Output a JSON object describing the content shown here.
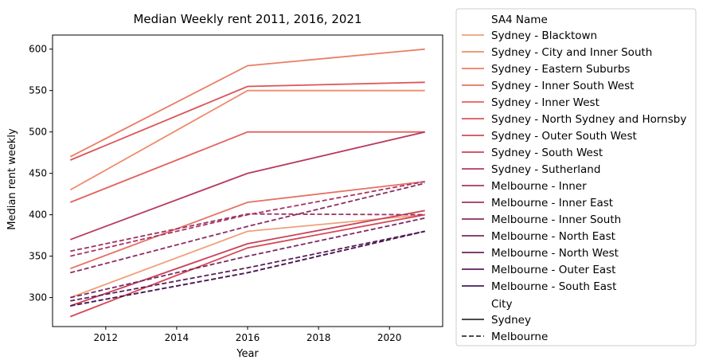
{
  "chart_data": {
    "type": "line",
    "title": "Median Weekly rent 2011, 2016, 2021",
    "xlabel": "Year",
    "ylabel": "Median rent weekly",
    "x": [
      2011,
      2016,
      2021
    ],
    "xlim": [
      2010.5,
      2021.5
    ],
    "ylim": [
      265,
      617
    ],
    "xticks": [
      2012,
      2014,
      2016,
      2018,
      2020
    ],
    "yticks": [
      300,
      350,
      400,
      450,
      500,
      550,
      600
    ],
    "grid": false,
    "legend": {
      "placement": "outside-right",
      "hue_title": "SA4 Name",
      "style_title": "City",
      "style_entries": [
        {
          "label": "Sydney",
          "dash": "solid"
        },
        {
          "label": "Melbourne",
          "dash": "dashed"
        }
      ]
    },
    "series": [
      {
        "name": "Sydney - Blacktown",
        "city": "Sydney",
        "color": "#f0a07a",
        "values": [
          300,
          380,
          400
        ]
      },
      {
        "name": "Sydney - City and Inner South",
        "city": "Sydney",
        "color": "#ed8c6c",
        "values": [
          430,
          550,
          550
        ]
      },
      {
        "name": "Sydney - Eastern Suburbs",
        "city": "Sydney",
        "color": "#e97e66",
        "values": [
          470,
          580,
          600
        ]
      },
      {
        "name": "Sydney - Inner South West",
        "city": "Sydney",
        "color": "#e57262",
        "values": [
          335,
          415,
          440
        ]
      },
      {
        "name": "Sydney - Inner West",
        "city": "Sydney",
        "color": "#e1625d",
        "values": [
          415,
          500,
          500
        ]
      },
      {
        "name": "Sydney - North Sydney and Hornsby",
        "city": "Sydney",
        "color": "#dc5459",
        "values": [
          466,
          555,
          560
        ]
      },
      {
        "name": "Sydney - Outer South West",
        "city": "Sydney",
        "color": "#d34956",
        "values": [
          277,
          360,
          400
        ]
      },
      {
        "name": "Sydney - South West",
        "city": "Sydney",
        "color": "#c94257",
        "values": [
          290,
          365,
          405
        ]
      },
      {
        "name": "Sydney - Sutherland",
        "city": "Sydney",
        "color": "#b83a5d",
        "values": [
          370,
          450,
          500
        ]
      },
      {
        "name": "Melbourne - Inner",
        "city": "Melbourne",
        "color": "#a93562",
        "values": [
          350,
          400,
          440
        ]
      },
      {
        "name": "Melbourne - Inner East",
        "city": "Melbourne",
        "color": "#9c3263",
        "values": [
          356,
          401,
          400
        ]
      },
      {
        "name": "Melbourne - Inner South",
        "city": "Melbourne",
        "color": "#8b2d64",
        "values": [
          330,
          386,
          438
        ]
      },
      {
        "name": "Melbourne - North East",
        "city": "Melbourne",
        "color": "#7a2963",
        "values": [
          300,
          350,
          396
        ]
      },
      {
        "name": "Melbourne - North West",
        "city": "Melbourne",
        "color": "#6a2460",
        "values": [
          290,
          330,
          380
        ]
      },
      {
        "name": "Melbourne - Outer East",
        "city": "Melbourne",
        "color": "#591f5b",
        "values": [
          296,
          336,
          380
        ]
      },
      {
        "name": "Melbourne - South East",
        "city": "Melbourne",
        "color": "#4a1b54",
        "values": [
          290,
          330,
          380
        ]
      }
    ]
  }
}
